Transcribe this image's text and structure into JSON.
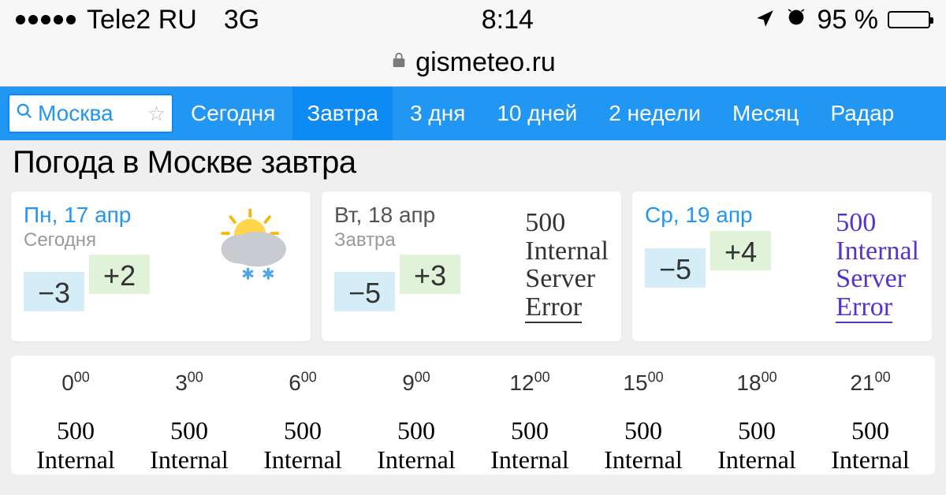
{
  "status": {
    "carrier": "Tele2 RU",
    "network": "3G",
    "time": "8:14",
    "battery_pct": "95 %",
    "battery_fill_pct": 95
  },
  "url": {
    "domain": "gismeteo.ru"
  },
  "nav": {
    "search_value": "Москва",
    "items": [
      "Сегодня",
      "Завтра",
      "3 дня",
      "10 дней",
      "2 недели",
      "Месяц",
      "Радар"
    ],
    "active_index": 1
  },
  "title": "Погода в Москве завтра",
  "cards": [
    {
      "date": "Пн, 17 апр",
      "sub": "Сегодня",
      "low": "−3",
      "high": "+2",
      "icon": "sun-cloud-snow",
      "error": null
    },
    {
      "date": "Вт, 18 апр",
      "sub": "Завтра",
      "low": "−5",
      "high": "+3",
      "icon": null,
      "error": "500 Internal Server Error",
      "error_color": "black"
    },
    {
      "date": "Ср, 19 апр",
      "sub": "",
      "low": "−5",
      "high": "+4",
      "icon": null,
      "error": "500 Internal Server Error",
      "error_color": "purple"
    }
  ],
  "hourly": {
    "times": [
      {
        "h": "0",
        "m": "00"
      },
      {
        "h": "3",
        "m": "00"
      },
      {
        "h": "6",
        "m": "00"
      },
      {
        "h": "9",
        "m": "00"
      },
      {
        "h": "12",
        "m": "00"
      },
      {
        "h": "15",
        "m": "00"
      },
      {
        "h": "18",
        "m": "00"
      },
      {
        "h": "21",
        "m": "00"
      }
    ],
    "error_line1": "500",
    "error_line2": "Internal"
  },
  "colors": {
    "nav_bg": "#2196f3",
    "nav_active_bg": "#0d8bf2",
    "temp_low_bg": "#d4edf7",
    "temp_high_bg": "#e0f2d8",
    "battery_fill": "#ffcc00"
  }
}
